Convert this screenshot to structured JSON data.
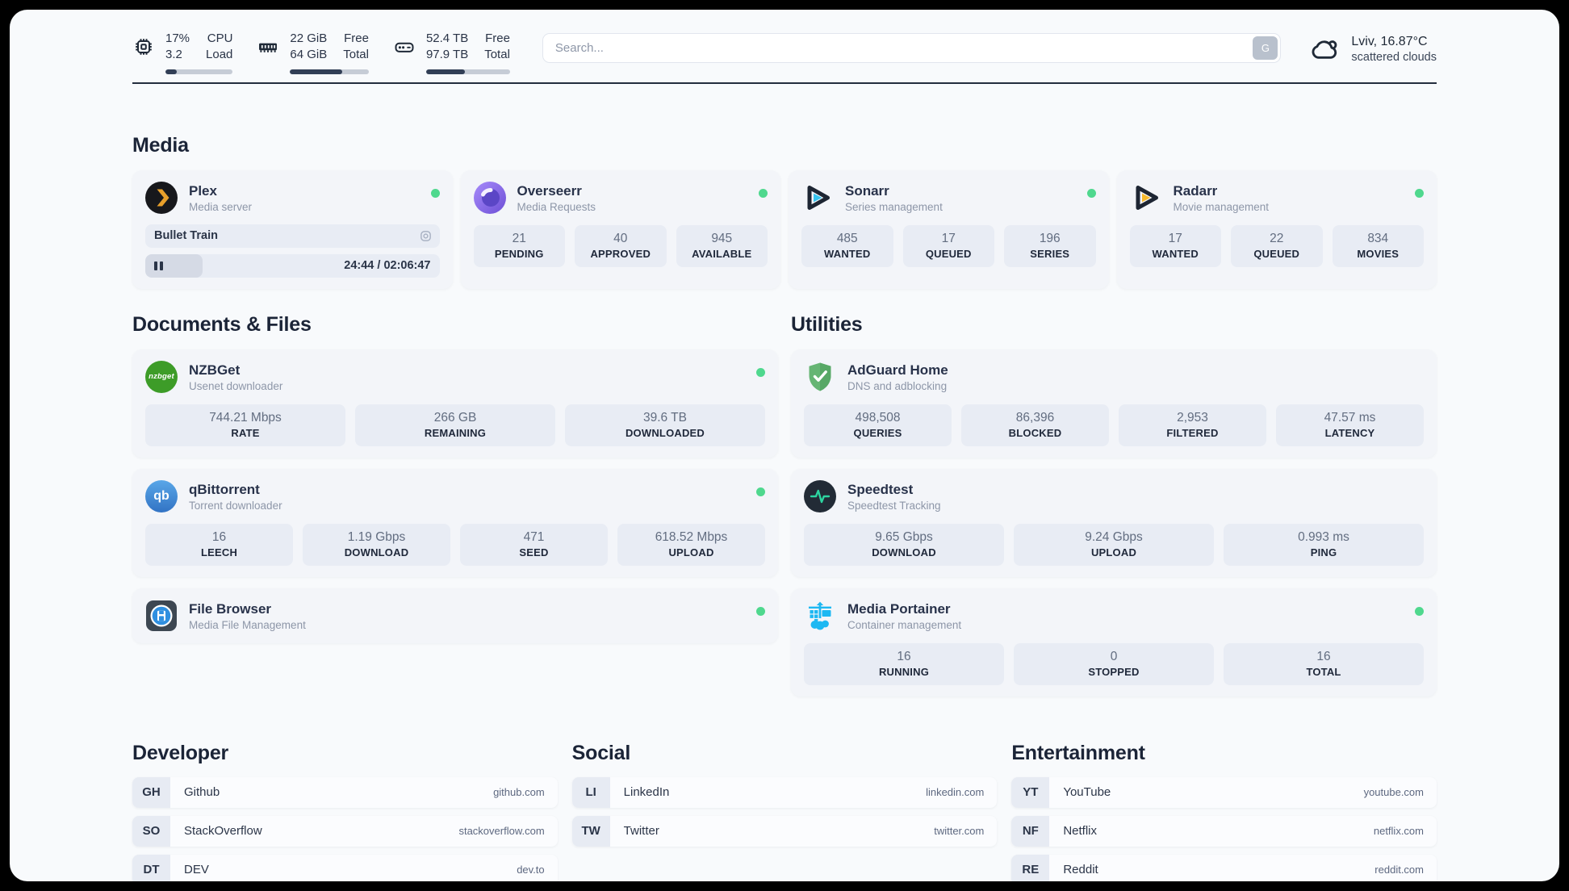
{
  "header": {
    "cpu": {
      "value1": "17%",
      "value2": "3.2",
      "label1": "CPU",
      "label2": "Load",
      "progress_pct": 17
    },
    "ram": {
      "value1": "22 GiB",
      "value2": "64 GiB",
      "label1": "Free",
      "label2": "Total",
      "progress_pct": 66
    },
    "disk": {
      "value1": "52.4 TB",
      "value2": "97.9 TB",
      "label1": "Free",
      "label2": "Total",
      "progress_pct": 46
    },
    "search": {
      "placeholder": "Search...",
      "button_label": "G"
    },
    "weather": {
      "location_temp": "Lviv, 16.87°C",
      "condition": "scattered clouds"
    }
  },
  "media": {
    "title": "Media",
    "plex": {
      "name": "Plex",
      "desc": "Media server",
      "now_playing": "Bullet Train",
      "time": "24:44 / 02:06:47",
      "progress_pct": 19.5
    },
    "overseerr": {
      "name": "Overseerr",
      "desc": "Media Requests",
      "stats": [
        {
          "value": "21",
          "label": "PENDING"
        },
        {
          "value": "40",
          "label": "APPROVED"
        },
        {
          "value": "945",
          "label": "AVAILABLE"
        }
      ]
    },
    "sonarr": {
      "name": "Sonarr",
      "desc": "Series management",
      "stats": [
        {
          "value": "485",
          "label": "WANTED"
        },
        {
          "value": "17",
          "label": "QUEUED"
        },
        {
          "value": "196",
          "label": "SERIES"
        }
      ]
    },
    "radarr": {
      "name": "Radarr",
      "desc": "Movie management",
      "stats": [
        {
          "value": "17",
          "label": "WANTED"
        },
        {
          "value": "22",
          "label": "QUEUED"
        },
        {
          "value": "834",
          "label": "MOVIES"
        }
      ]
    }
  },
  "documents": {
    "title": "Documents & Files",
    "nzbget": {
      "name": "NZBGet",
      "desc": "Usenet downloader",
      "icon_text": "nzbget",
      "stats": [
        {
          "value": "744.21 Mbps",
          "label": "RATE"
        },
        {
          "value": "266 GB",
          "label": "REMAINING"
        },
        {
          "value": "39.6 TB",
          "label": "DOWNLOADED"
        }
      ]
    },
    "qbittorrent": {
      "name": "qBittorrent",
      "desc": "Torrent downloader",
      "icon_text": "qb",
      "stats": [
        {
          "value": "16",
          "label": "LEECH"
        },
        {
          "value": "1.19 Gbps",
          "label": "DOWNLOAD"
        },
        {
          "value": "471",
          "label": "SEED"
        },
        {
          "value": "618.52 Mbps",
          "label": "UPLOAD"
        }
      ]
    },
    "filebrowser": {
      "name": "File Browser",
      "desc": "Media File Management"
    }
  },
  "utilities": {
    "title": "Utilities",
    "adguard": {
      "name": "AdGuard Home",
      "desc": "DNS and adblocking",
      "stats": [
        {
          "value": "498,508",
          "label": "QUERIES"
        },
        {
          "value": "86,396",
          "label": "BLOCKED"
        },
        {
          "value": "2,953",
          "label": "FILTERED"
        },
        {
          "value": "47.57 ms",
          "label": "LATENCY"
        }
      ]
    },
    "speedtest": {
      "name": "Speedtest",
      "desc": "Speedtest Tracking",
      "stats": [
        {
          "value": "9.65 Gbps",
          "label": "DOWNLOAD"
        },
        {
          "value": "9.24 Gbps",
          "label": "UPLOAD"
        },
        {
          "value": "0.993 ms",
          "label": "PING"
        }
      ]
    },
    "portainer": {
      "name": "Media Portainer",
      "desc": "Container management",
      "stats": [
        {
          "value": "16",
          "label": "RUNNING"
        },
        {
          "value": "0",
          "label": "STOPPED"
        },
        {
          "value": "16",
          "label": "TOTAL"
        }
      ]
    }
  },
  "bookmarks": {
    "developer": {
      "title": "Developer",
      "links": [
        {
          "abbr": "GH",
          "name": "Github",
          "url": "github.com"
        },
        {
          "abbr": "SO",
          "name": "StackOverflow",
          "url": "stackoverflow.com"
        },
        {
          "abbr": "DT",
          "name": "DEV",
          "url": "dev.to"
        }
      ]
    },
    "social": {
      "title": "Social",
      "links": [
        {
          "abbr": "LI",
          "name": "LinkedIn",
          "url": "linkedin.com"
        },
        {
          "abbr": "TW",
          "name": "Twitter",
          "url": "twitter.com"
        }
      ]
    },
    "entertainment": {
      "title": "Entertainment",
      "links": [
        {
          "abbr": "YT",
          "name": "YouTube",
          "url": "youtube.com"
        },
        {
          "abbr": "NF",
          "name": "Netflix",
          "url": "netflix.com"
        },
        {
          "abbr": "RE",
          "name": "Reddit",
          "url": "reddit.com"
        }
      ]
    }
  }
}
